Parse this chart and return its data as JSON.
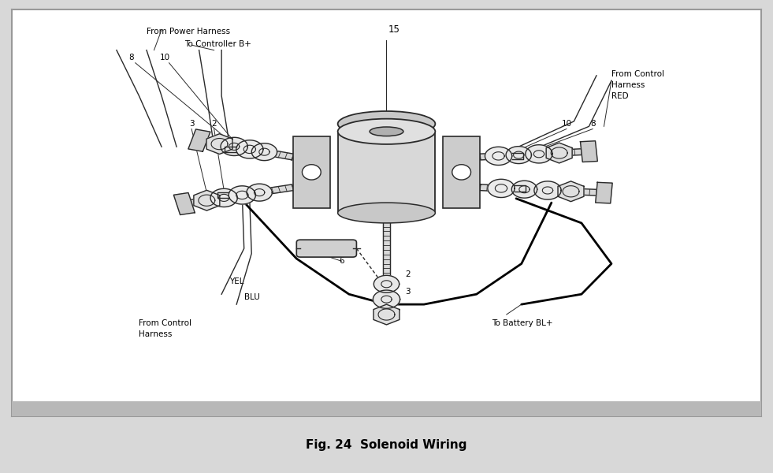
{
  "title": "Fig. 24  Solenoid Wiring",
  "bg_color": "#d8d8d8",
  "panel_bg": "#ffffff",
  "border_color": "#999999",
  "text_color": "#000000",
  "diagram_color": "#2a2a2a",
  "labels": {
    "from_power_harness": "From Power Harness",
    "to_controller": "To Controller B+",
    "label_15": "15",
    "label_8_left": "8",
    "label_10_left": "10",
    "label_3_left": "3",
    "label_2_left": "2",
    "label_6": "6",
    "label_yel": "YEL",
    "label_blu": "BLU",
    "from_control_harness_bottom": "From Control\nHarness",
    "from_control_harness_right": "From Control\nHarness\nRED",
    "label_10_right": "10",
    "label_8_right": "8",
    "label_2_bottom": "2",
    "label_3_bottom": "3",
    "to_battery": "To Battery BL+"
  }
}
